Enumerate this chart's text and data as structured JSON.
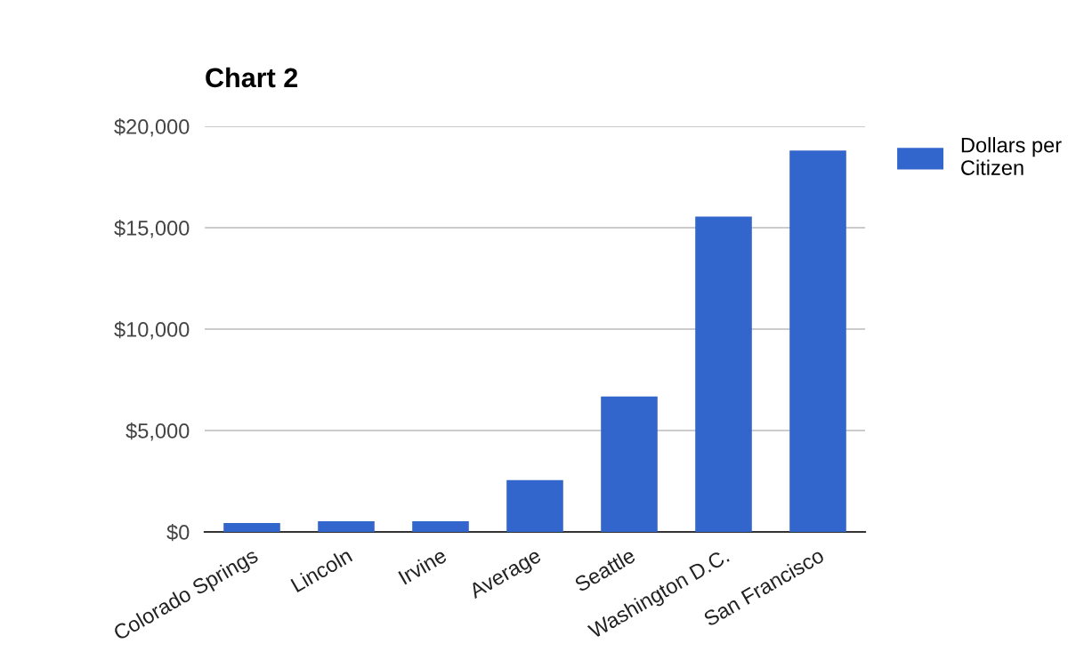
{
  "chart_data": {
    "type": "bar",
    "title": "Chart 2",
    "categories": [
      "Colorado Springs",
      "Lincoln",
      "Irvine",
      "Average",
      "Seattle",
      "Washington D.C.",
      "San Francisco"
    ],
    "series": [
      {
        "name": "Dollars per Citizen",
        "color": "#3366cc",
        "values": [
          440,
          530,
          530,
          2550,
          6680,
          15550,
          18800
        ]
      }
    ],
    "ylim": [
      0,
      20000
    ],
    "yticks": [
      {
        "value": 0,
        "label": "$0"
      },
      {
        "value": 5000,
        "label": "$5,000"
      },
      {
        "value": 10000,
        "label": "$10,000"
      },
      {
        "value": 15000,
        "label": "$15,000"
      },
      {
        "value": 20000,
        "label": "$20,000"
      }
    ],
    "grid": "y",
    "legend": "right"
  }
}
